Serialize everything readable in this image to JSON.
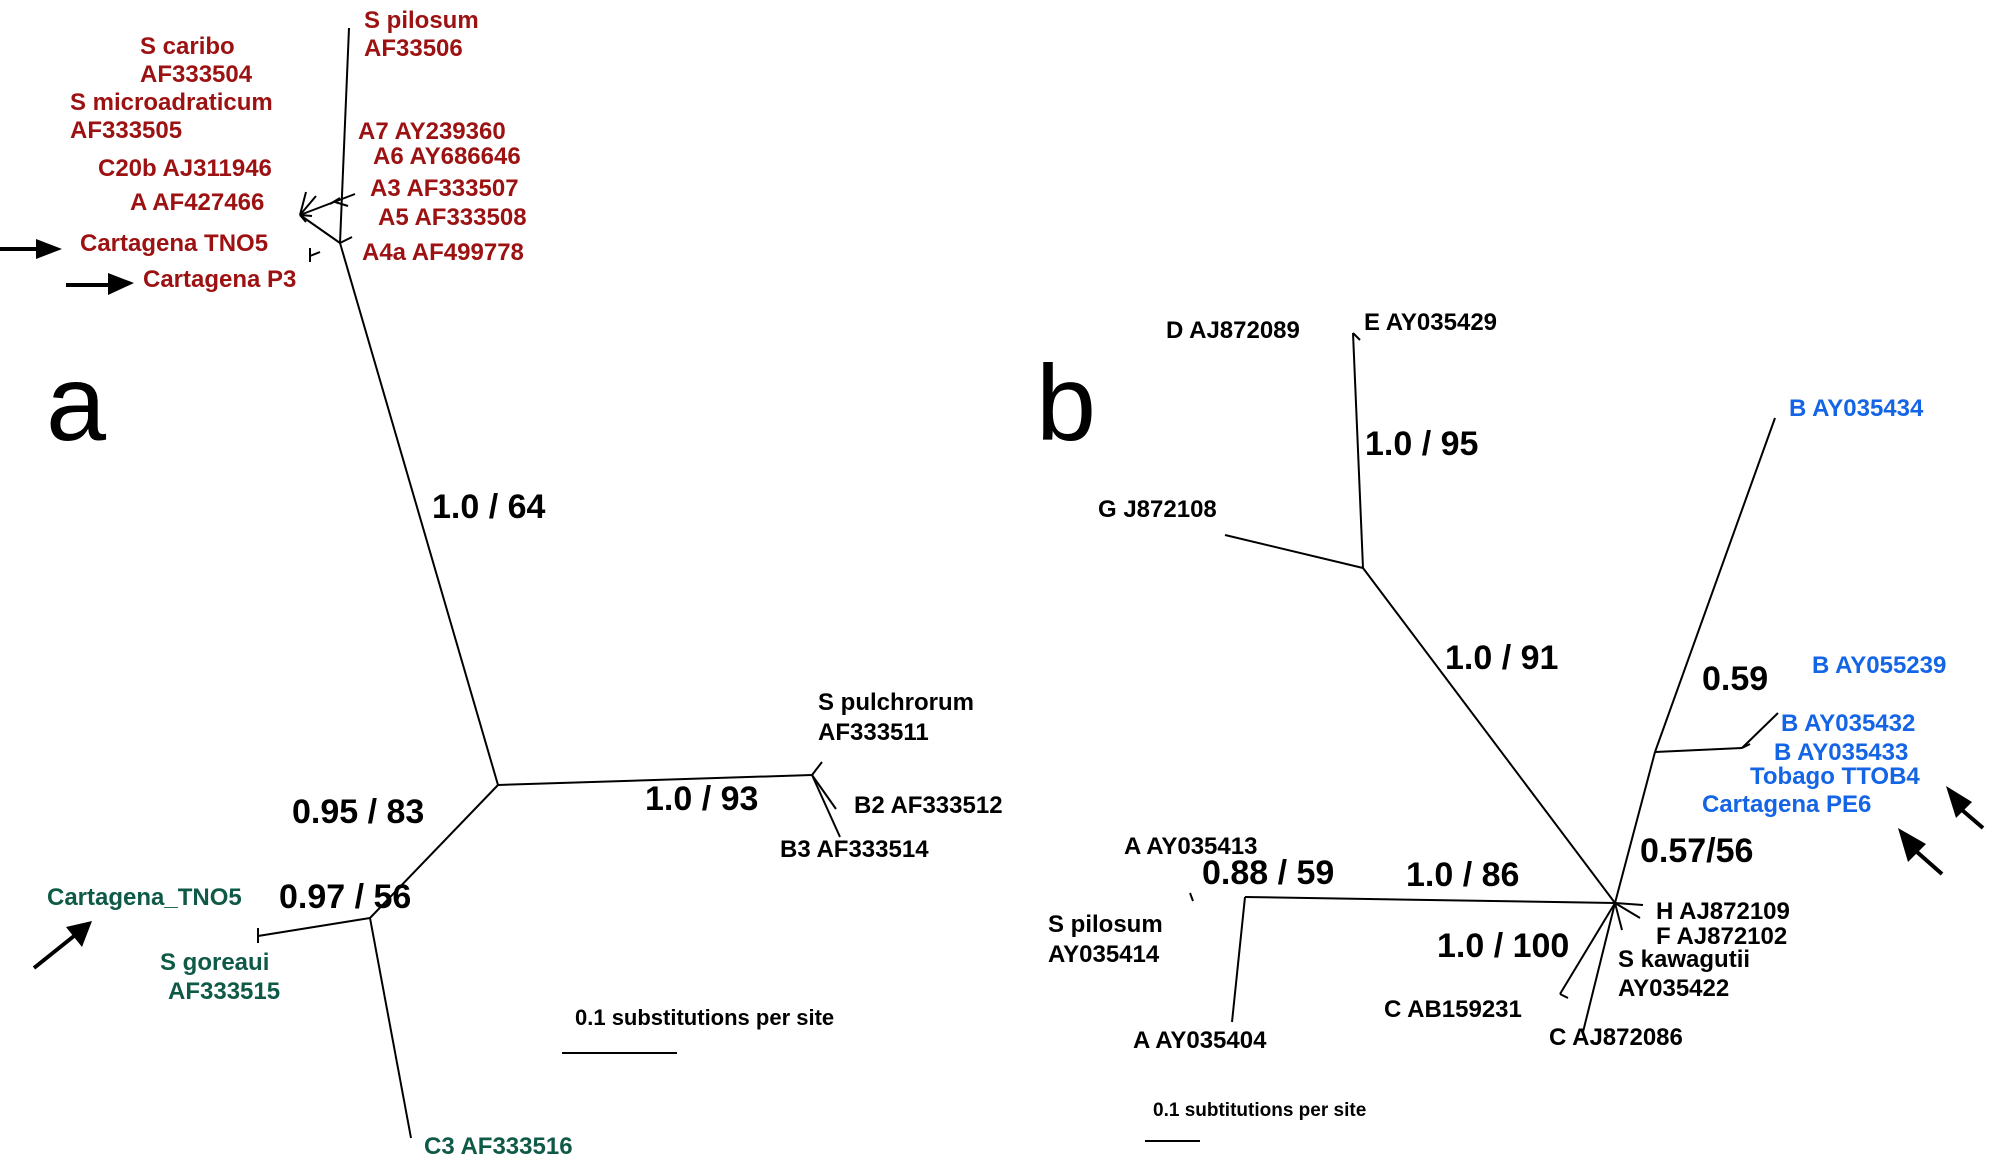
{
  "colors": {
    "red_clade": "#9c1111",
    "green_clade": "#0f5a47",
    "blue_clade": "#1464e6",
    "black": "#000000"
  },
  "panel_a": {
    "letter": "a",
    "red_labels": {
      "s_pilosum": "S pilosum",
      "s_pilosum_acc": "AF33506",
      "s_caribo": "S caribo",
      "s_caribo_acc": "AF333504",
      "s_microadraticum": "S microadraticum",
      "s_microadraticum_acc": "AF333505",
      "a7": "A7 AY239360",
      "a6": "A6 AY686646",
      "c20b": "C20b AJ311946",
      "a3": "A3 AF333507",
      "a": "A AF427466",
      "a5": "A5 AF333508",
      "cartagena_tno5": "Cartagena TNO5",
      "a4a": "A4a AF499778",
      "cartagena_p3": "Cartagena P3"
    },
    "black_labels": {
      "s_pulchrorum": "S pulchrorum",
      "s_pulchrorum_acc": "AF333511",
      "b2": "B2 AF333512",
      "b3": "B3 AF333514"
    },
    "green_labels": {
      "cartagena_tno5_b": "Cartagena_TNO5",
      "s_goreaui": "S goreaui",
      "s_goreaui_acc": "AF333515",
      "c3": "C3 AF333516"
    },
    "support": {
      "main": "1.0 / 64",
      "b_clade": "1.0 / 93",
      "c_split": "0.95 / 83",
      "c_clade": "0.97 / 56"
    },
    "scale_label": "0.1 substitutions per site"
  },
  "panel_b": {
    "letter": "b",
    "black_labels": {
      "d": "D AJ872089",
      "e": "E AY035429",
      "g": "G J872108",
      "a1": "A AY035413",
      "s_pilosum": "S pilosum",
      "s_pilosum_acc": "AY035414",
      "a2": "A AY035404",
      "h": "H AJ872109",
      "f": "F AJ872102",
      "s_kawagutii": "S kawagutii",
      "s_kawagutii_acc": "AY035422",
      "c1": "C AB159231",
      "c2": "C AJ872086"
    },
    "blue_labels": {
      "b1": "B AY035434",
      "b2": "B AY055239",
      "b3": "B AY035432",
      "b4": "B AY035433",
      "tobago": "Tobago TTOB4",
      "cartagena_pe6": "Cartagena PE6"
    },
    "support": {
      "deg": "1.0 / 95",
      "deg_stem": "1.0 / 91",
      "b_inner": "0.59",
      "b_stem": "0.57/56",
      "a_clade": "0.88 / 59",
      "a_stem": "1.0 / 86",
      "c_clade": "1.0 / 100"
    },
    "scale_label": "0.1 subtitutions per site"
  }
}
